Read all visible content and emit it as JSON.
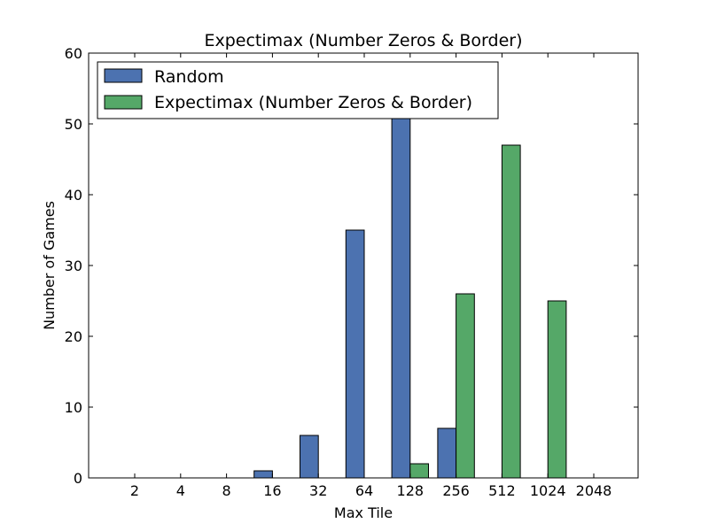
{
  "chart_data": {
    "type": "bar",
    "title": "Expectimax (Number Zeros & Border)",
    "xlabel": "Max Tile",
    "ylabel": "Number of Games",
    "categories": [
      "2",
      "4",
      "8",
      "16",
      "32",
      "64",
      "128",
      "256",
      "512",
      "1024",
      "2048"
    ],
    "ylim": [
      0,
      60
    ],
    "yticks": [
      0,
      10,
      20,
      30,
      40,
      50,
      60
    ],
    "grid": false,
    "legend_position": "top-left",
    "series": [
      {
        "name": "Random",
        "color": "#4c72b0",
        "values": [
          0,
          0,
          0,
          1,
          6,
          35,
          51,
          7,
          0,
          0,
          0
        ]
      },
      {
        "name": "Expectimax (Number Zeros & Border)",
        "color": "#55a868",
        "values": [
          0,
          0,
          0,
          0,
          0,
          0,
          2,
          26,
          47,
          25,
          0
        ]
      }
    ]
  }
}
